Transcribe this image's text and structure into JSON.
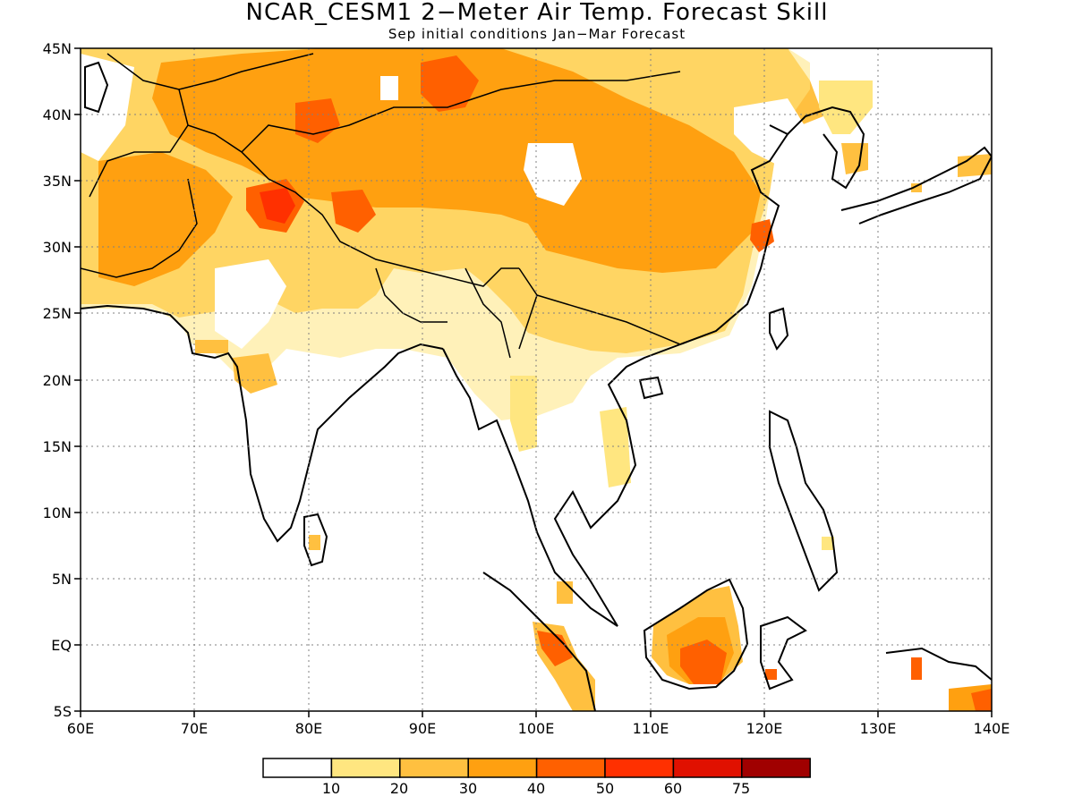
{
  "title": "NCAR_CESM1 2−Meter Air Temp. Forecast Skill",
  "subtitle": "Sep initial conditions   Jan−Mar Forecast",
  "map": {
    "lon_range": [
      60,
      140
    ],
    "lat_range": [
      -5,
      45
    ],
    "x_ticks": [
      "60E",
      "70E",
      "80E",
      "90E",
      "100E",
      "110E",
      "120E",
      "130E",
      "140E"
    ],
    "y_ticks": [
      "5S",
      "EQ",
      "5N",
      "10N",
      "15N",
      "20N",
      "25N",
      "30N",
      "35N",
      "40N",
      "45N"
    ],
    "grid": "dotted"
  },
  "colorbar": {
    "labels": [
      "10",
      "20",
      "30",
      "40",
      "50",
      "60",
      "75"
    ],
    "colors": [
      "#ffffff",
      "#ffe680",
      "#ffc040",
      "#ffa010",
      "#ff6000",
      "#ff3000",
      "#e01000",
      "#a00000"
    ]
  }
}
